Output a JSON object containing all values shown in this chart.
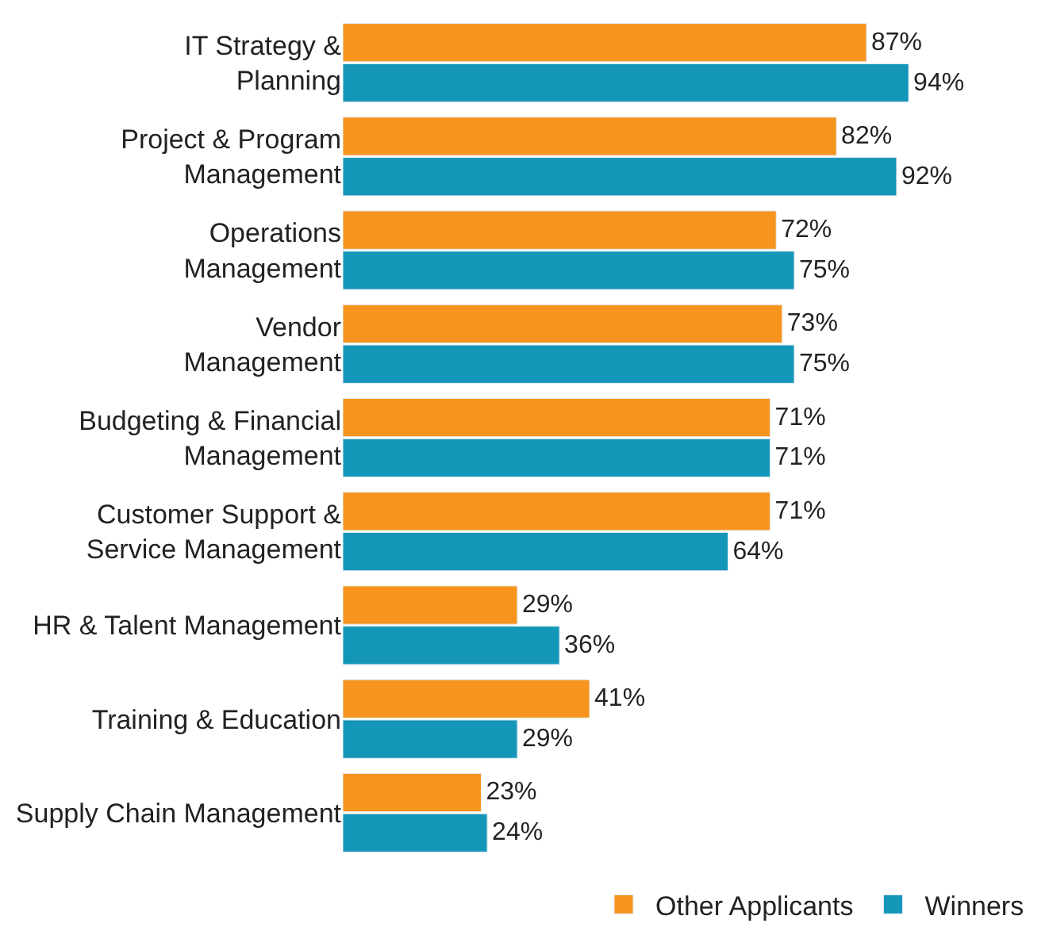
{
  "chart_data": {
    "type": "bar",
    "orientation": "horizontal",
    "legend": "bottom right",
    "categories": [
      "IT Strategy &\nPlanning",
      "Project & Program\nManagement",
      "Operations\nManagement",
      "Vendor\nManagement",
      "Budgeting & Financial\nManagement",
      "Customer Support &\nService Management",
      "HR & Talent Management",
      "Training & Education",
      "Supply Chain Management"
    ],
    "series": [
      {
        "name": "Other Applicants",
        "color": "#f7941d",
        "values": [
          87,
          82,
          72,
          73,
          71,
          71,
          29,
          41,
          23
        ],
        "value_labels": [
          "87%",
          "82%",
          "72%",
          "73%",
          "71%",
          "71%",
          "29%",
          "41%",
          "23%"
        ]
      },
      {
        "name": "Winners",
        "color": "#1396b8",
        "values": [
          94,
          92,
          75,
          75,
          71,
          64,
          36,
          29,
          24
        ],
        "value_labels": [
          "94%",
          "92%",
          "75%",
          "75%",
          "71%",
          "64%",
          "36%",
          "29%",
          "24%"
        ]
      }
    ]
  }
}
